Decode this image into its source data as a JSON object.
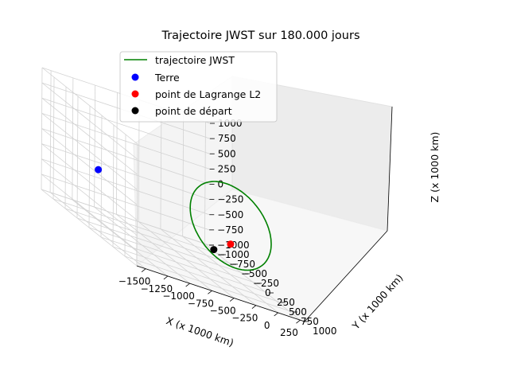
{
  "chart_data": {
    "type": "scatter",
    "projection": "3d",
    "title": "Trajectoire JWST sur 180.000 jours",
    "xlabel": "X (x 1000 km)",
    "ylabel": "Y (x 1000 km)",
    "zlabel": "Z (x 1000 km)",
    "xlim": [
      -1600,
      300
    ],
    "ylim": [
      -1000,
      1000
    ],
    "zlim": [
      -1000,
      1000
    ],
    "x_ticks": [
      "−1500",
      "−1250",
      "−1000",
      "−750",
      "−500",
      "−250",
      "0",
      "250"
    ],
    "y_ticks": [
      "−1000",
      "−750",
      "−500",
      "−250",
      "0",
      "250",
      "500",
      "750",
      "1000"
    ],
    "z_ticks": [
      "−1000",
      "−750",
      "−500",
      "−250",
      "0",
      "250",
      "500",
      "750",
      "1000"
    ],
    "grid": true,
    "legend_position": "top-left",
    "series": [
      {
        "name": "trajectoire JWST",
        "kind": "line",
        "color": "#008000",
        "approx_orbit": {
          "center": [
            0,
            0,
            -200
          ],
          "radius_y": 800,
          "radius_z": 600,
          "tilt_x": 150
        }
      },
      {
        "name": "Terre",
        "kind": "point",
        "color": "#0000ff",
        "x": -1500,
        "y": 0,
        "z": 0
      },
      {
        "name": "point de Lagrange L2",
        "kind": "point",
        "color": "#ff0000",
        "x": 0,
        "y": 0,
        "z": -500
      },
      {
        "name": "point de départ",
        "kind": "point",
        "color": "#000000",
        "x": 60,
        "y": -460,
        "z": -850
      }
    ]
  }
}
